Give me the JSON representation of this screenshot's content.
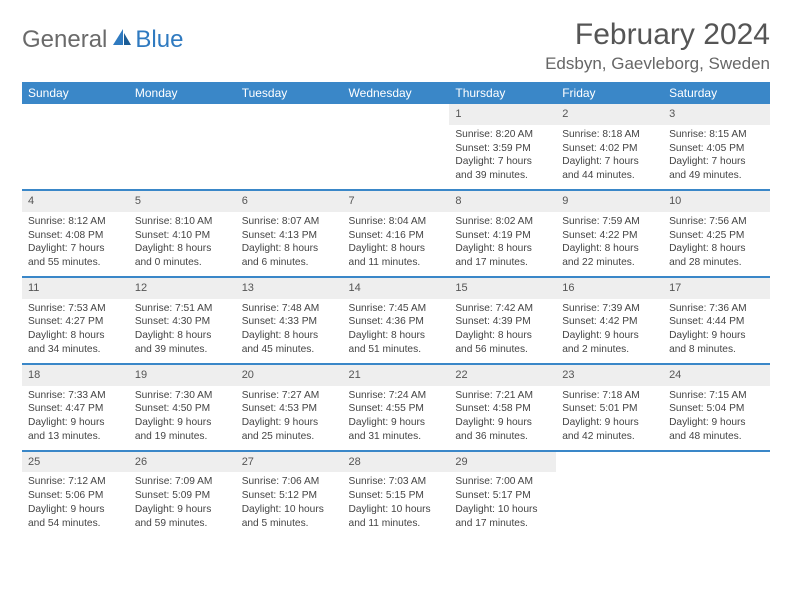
{
  "logo": {
    "part1": "General",
    "part2": "Blue"
  },
  "title": "February 2024",
  "location": "Edsbyn, Gaevleborg, Sweden",
  "colors": {
    "header_bg": "#3a87c8",
    "header_fg": "#ffffff",
    "daynum_bg": "#eeeeee",
    "text": "#444444",
    "rule": "#3a87c8",
    "logo_gray": "#6a6a6a",
    "logo_blue": "#2f7ac0"
  },
  "weekdays": [
    "Sunday",
    "Monday",
    "Tuesday",
    "Wednesday",
    "Thursday",
    "Friday",
    "Saturday"
  ],
  "weeks": [
    [
      {
        "n": "",
        "lines": []
      },
      {
        "n": "",
        "lines": []
      },
      {
        "n": "",
        "lines": []
      },
      {
        "n": "",
        "lines": []
      },
      {
        "n": "1",
        "lines": [
          "Sunrise: 8:20 AM",
          "Sunset: 3:59 PM",
          "Daylight: 7 hours and 39 minutes."
        ]
      },
      {
        "n": "2",
        "lines": [
          "Sunrise: 8:18 AM",
          "Sunset: 4:02 PM",
          "Daylight: 7 hours and 44 minutes."
        ]
      },
      {
        "n": "3",
        "lines": [
          "Sunrise: 8:15 AM",
          "Sunset: 4:05 PM",
          "Daylight: 7 hours and 49 minutes."
        ]
      }
    ],
    [
      {
        "n": "4",
        "lines": [
          "Sunrise: 8:12 AM",
          "Sunset: 4:08 PM",
          "Daylight: 7 hours and 55 minutes."
        ]
      },
      {
        "n": "5",
        "lines": [
          "Sunrise: 8:10 AM",
          "Sunset: 4:10 PM",
          "Daylight: 8 hours and 0 minutes."
        ]
      },
      {
        "n": "6",
        "lines": [
          "Sunrise: 8:07 AM",
          "Sunset: 4:13 PM",
          "Daylight: 8 hours and 6 minutes."
        ]
      },
      {
        "n": "7",
        "lines": [
          "Sunrise: 8:04 AM",
          "Sunset: 4:16 PM",
          "Daylight: 8 hours and 11 minutes."
        ]
      },
      {
        "n": "8",
        "lines": [
          "Sunrise: 8:02 AM",
          "Sunset: 4:19 PM",
          "Daylight: 8 hours and 17 minutes."
        ]
      },
      {
        "n": "9",
        "lines": [
          "Sunrise: 7:59 AM",
          "Sunset: 4:22 PM",
          "Daylight: 8 hours and 22 minutes."
        ]
      },
      {
        "n": "10",
        "lines": [
          "Sunrise: 7:56 AM",
          "Sunset: 4:25 PM",
          "Daylight: 8 hours and 28 minutes."
        ]
      }
    ],
    [
      {
        "n": "11",
        "lines": [
          "Sunrise: 7:53 AM",
          "Sunset: 4:27 PM",
          "Daylight: 8 hours and 34 minutes."
        ]
      },
      {
        "n": "12",
        "lines": [
          "Sunrise: 7:51 AM",
          "Sunset: 4:30 PM",
          "Daylight: 8 hours and 39 minutes."
        ]
      },
      {
        "n": "13",
        "lines": [
          "Sunrise: 7:48 AM",
          "Sunset: 4:33 PM",
          "Daylight: 8 hours and 45 minutes."
        ]
      },
      {
        "n": "14",
        "lines": [
          "Sunrise: 7:45 AM",
          "Sunset: 4:36 PM",
          "Daylight: 8 hours and 51 minutes."
        ]
      },
      {
        "n": "15",
        "lines": [
          "Sunrise: 7:42 AM",
          "Sunset: 4:39 PM",
          "Daylight: 8 hours and 56 minutes."
        ]
      },
      {
        "n": "16",
        "lines": [
          "Sunrise: 7:39 AM",
          "Sunset: 4:42 PM",
          "Daylight: 9 hours and 2 minutes."
        ]
      },
      {
        "n": "17",
        "lines": [
          "Sunrise: 7:36 AM",
          "Sunset: 4:44 PM",
          "Daylight: 9 hours and 8 minutes."
        ]
      }
    ],
    [
      {
        "n": "18",
        "lines": [
          "Sunrise: 7:33 AM",
          "Sunset: 4:47 PM",
          "Daylight: 9 hours and 13 minutes."
        ]
      },
      {
        "n": "19",
        "lines": [
          "Sunrise: 7:30 AM",
          "Sunset: 4:50 PM",
          "Daylight: 9 hours and 19 minutes."
        ]
      },
      {
        "n": "20",
        "lines": [
          "Sunrise: 7:27 AM",
          "Sunset: 4:53 PM",
          "Daylight: 9 hours and 25 minutes."
        ]
      },
      {
        "n": "21",
        "lines": [
          "Sunrise: 7:24 AM",
          "Sunset: 4:55 PM",
          "Daylight: 9 hours and 31 minutes."
        ]
      },
      {
        "n": "22",
        "lines": [
          "Sunrise: 7:21 AM",
          "Sunset: 4:58 PM",
          "Daylight: 9 hours and 36 minutes."
        ]
      },
      {
        "n": "23",
        "lines": [
          "Sunrise: 7:18 AM",
          "Sunset: 5:01 PM",
          "Daylight: 9 hours and 42 minutes."
        ]
      },
      {
        "n": "24",
        "lines": [
          "Sunrise: 7:15 AM",
          "Sunset: 5:04 PM",
          "Daylight: 9 hours and 48 minutes."
        ]
      }
    ],
    [
      {
        "n": "25",
        "lines": [
          "Sunrise: 7:12 AM",
          "Sunset: 5:06 PM",
          "Daylight: 9 hours and 54 minutes."
        ]
      },
      {
        "n": "26",
        "lines": [
          "Sunrise: 7:09 AM",
          "Sunset: 5:09 PM",
          "Daylight: 9 hours and 59 minutes."
        ]
      },
      {
        "n": "27",
        "lines": [
          "Sunrise: 7:06 AM",
          "Sunset: 5:12 PM",
          "Daylight: 10 hours and 5 minutes."
        ]
      },
      {
        "n": "28",
        "lines": [
          "Sunrise: 7:03 AM",
          "Sunset: 5:15 PM",
          "Daylight: 10 hours and 11 minutes."
        ]
      },
      {
        "n": "29",
        "lines": [
          "Sunrise: 7:00 AM",
          "Sunset: 5:17 PM",
          "Daylight: 10 hours and 17 minutes."
        ]
      },
      {
        "n": "",
        "lines": []
      },
      {
        "n": "",
        "lines": []
      }
    ]
  ]
}
